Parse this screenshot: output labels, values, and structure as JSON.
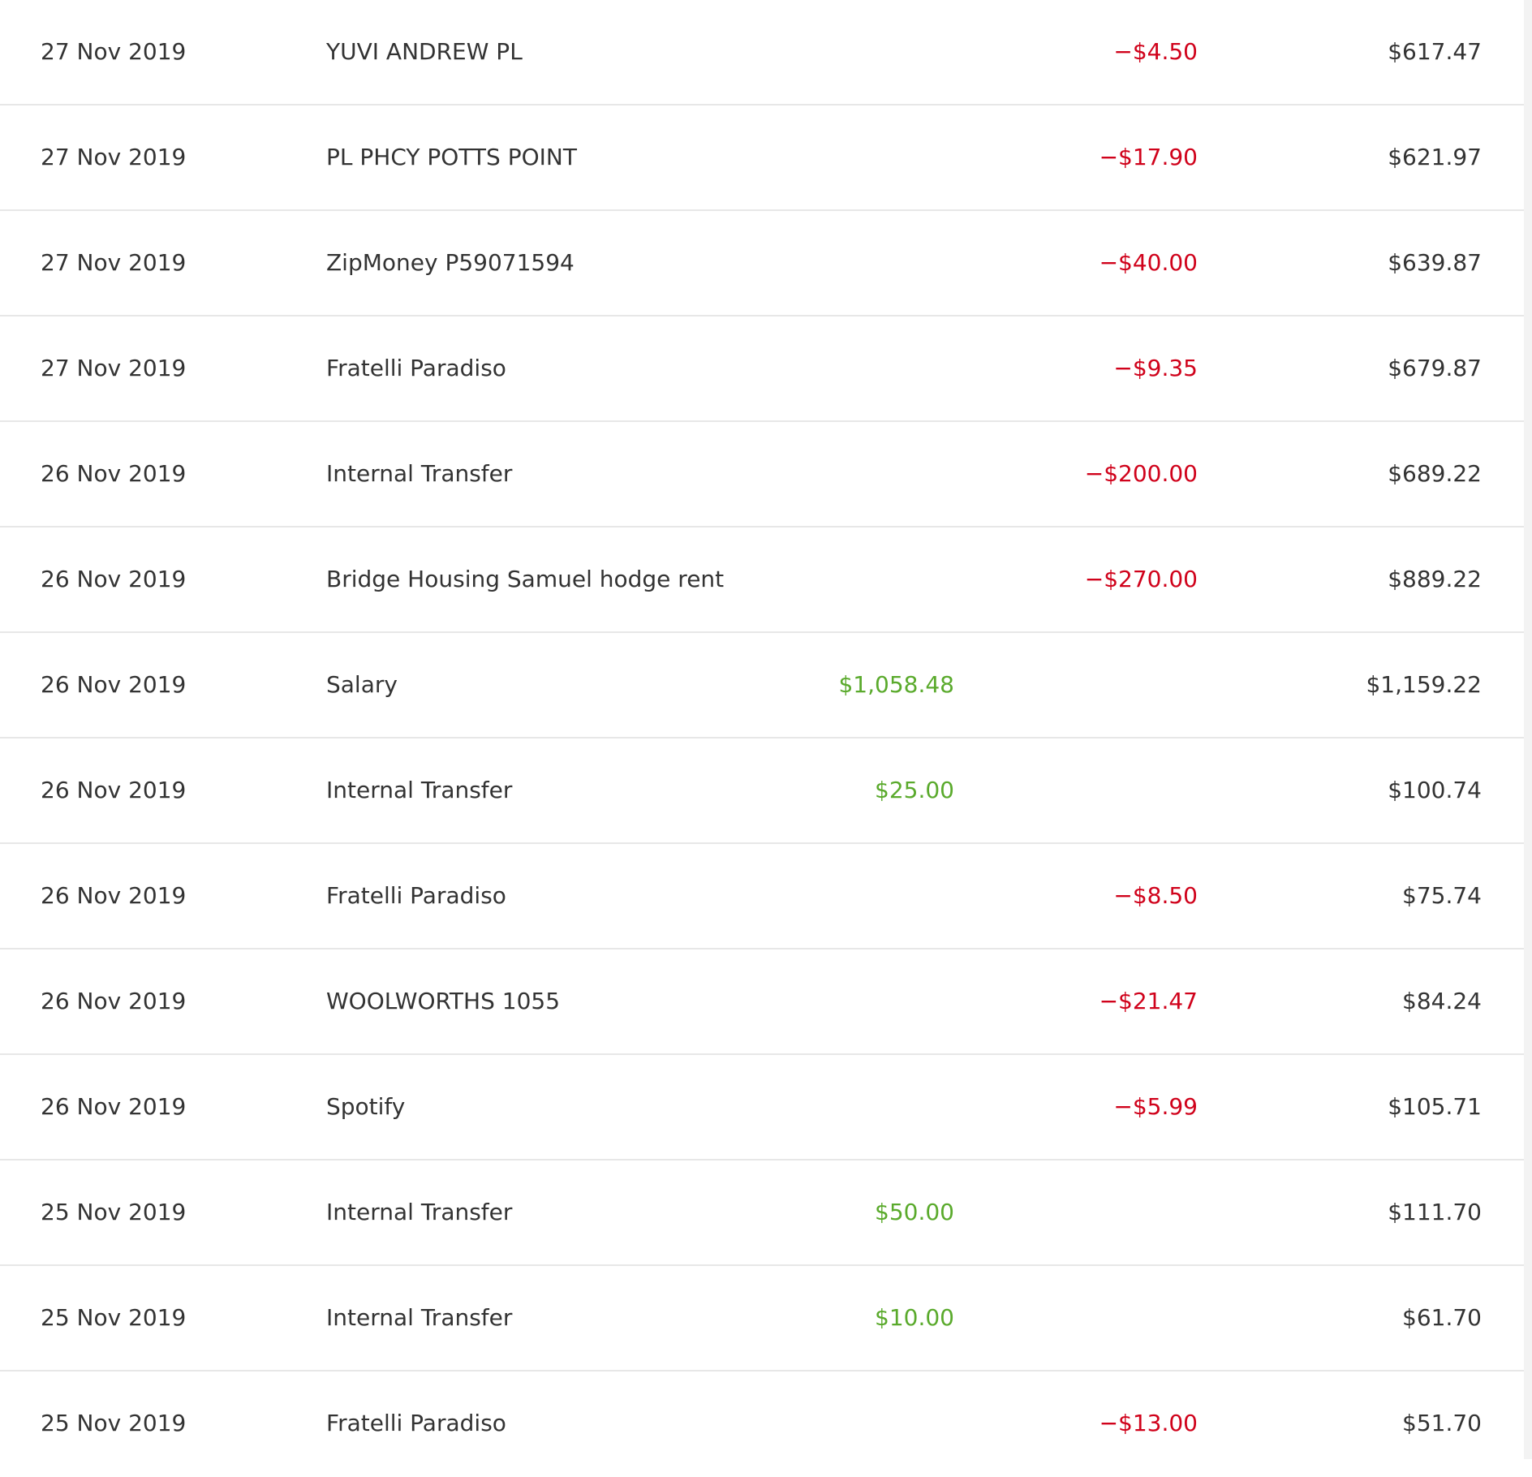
{
  "colors": {
    "text": "#333333",
    "credit": "#5aaa2c",
    "debit": "#d0021b",
    "divider": "#e7e7e7"
  },
  "transactions": [
    {
      "date": "27 Nov 2019",
      "description": "YUVI ANDREW PL",
      "credit": "",
      "debit": "−$4.50",
      "balance": "$617.47"
    },
    {
      "date": "27 Nov 2019",
      "description": "PL PHCY POTTS POINT",
      "credit": "",
      "debit": "−$17.90",
      "balance": "$621.97"
    },
    {
      "date": "27 Nov 2019",
      "description": "ZipMoney P59071594",
      "credit": "",
      "debit": "−$40.00",
      "balance": "$639.87"
    },
    {
      "date": "27 Nov 2019",
      "description": "Fratelli Paradiso",
      "credit": "",
      "debit": "−$9.35",
      "balance": "$679.87"
    },
    {
      "date": "26 Nov 2019",
      "description": "Internal Transfer",
      "credit": "",
      "debit": "−$200.00",
      "balance": "$689.22"
    },
    {
      "date": "26 Nov 2019",
      "description": "Bridge Housing Samuel hodge rent",
      "credit": "",
      "debit": "−$270.00",
      "balance": "$889.22"
    },
    {
      "date": "26 Nov 2019",
      "description": "Salary",
      "credit": "$1,058.48",
      "debit": "",
      "balance": "$1,159.22"
    },
    {
      "date": "26 Nov 2019",
      "description": "Internal Transfer",
      "credit": "$25.00",
      "debit": "",
      "balance": "$100.74"
    },
    {
      "date": "26 Nov 2019",
      "description": "Fratelli Paradiso",
      "credit": "",
      "debit": "−$8.50",
      "balance": "$75.74"
    },
    {
      "date": "26 Nov 2019",
      "description": "WOOLWORTHS 1055",
      "credit": "",
      "debit": "−$21.47",
      "balance": "$84.24"
    },
    {
      "date": "26 Nov 2019",
      "description": "Spotify",
      "credit": "",
      "debit": "−$5.99",
      "balance": "$105.71"
    },
    {
      "date": "25 Nov 2019",
      "description": "Internal Transfer",
      "credit": "$50.00",
      "debit": "",
      "balance": "$111.70"
    },
    {
      "date": "25 Nov 2019",
      "description": "Internal Transfer",
      "credit": "$10.00",
      "debit": "",
      "balance": "$61.70"
    },
    {
      "date": "25 Nov 2019",
      "description": "Fratelli Paradiso",
      "credit": "",
      "debit": "−$13.00",
      "balance": "$51.70"
    }
  ]
}
